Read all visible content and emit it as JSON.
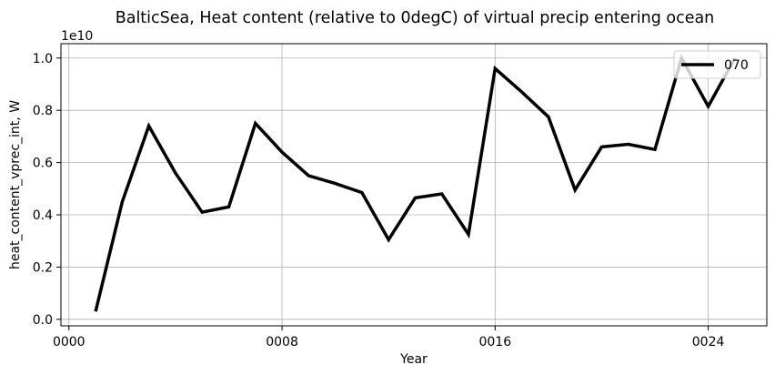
{
  "chart_data": {
    "type": "line",
    "title": "BalticSea, Heat content (relative to 0degC) of virtual precip entering ocean",
    "xlabel": "Year",
    "ylabel": "heat_content_vprec_int, W",
    "y_offset_label": "1e10",
    "xlim": [
      -0.3,
      26.2
    ],
    "ylim": [
      -0.025,
      1.055
    ],
    "x_ticks": [
      0,
      8,
      16,
      24
    ],
    "x_tick_labels": [
      "0000",
      "0008",
      "0016",
      "0024"
    ],
    "y_ticks": [
      0.0,
      0.2,
      0.4,
      0.6,
      0.8,
      1.0
    ],
    "y_tick_labels": [
      "0.0",
      "0.2",
      "0.4",
      "0.6",
      "0.8",
      "1.0"
    ],
    "grid": true,
    "legend_position": "top-right",
    "series": [
      {
        "name": "070",
        "color": "#000000",
        "x": [
          1,
          2,
          3,
          4,
          5,
          6,
          7,
          8,
          9,
          10,
          11,
          12,
          13,
          14,
          15,
          16,
          17,
          18,
          19,
          20,
          21,
          22,
          23,
          24,
          25
        ],
        "y": [
          0.03,
          0.45,
          0.74,
          0.56,
          0.41,
          0.43,
          0.75,
          0.64,
          0.55,
          0.52,
          0.485,
          0.305,
          0.465,
          0.48,
          0.325,
          0.96,
          0.87,
          0.775,
          0.495,
          0.66,
          0.67,
          0.65,
          1.0,
          0.815,
          1.0
        ]
      }
    ]
  }
}
